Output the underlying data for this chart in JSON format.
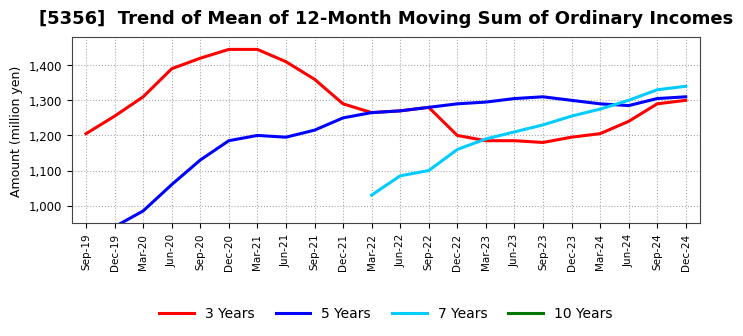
{
  "title": "[5356]  Trend of Mean of 12-Month Moving Sum of Ordinary Incomes",
  "ylabel": "Amount (million yen)",
  "ylim": [
    950,
    1480
  ],
  "yticks": [
    1000,
    1100,
    1200,
    1300,
    1400
  ],
  "x_labels": [
    "Sep-19",
    "Dec-19",
    "Mar-20",
    "Jun-20",
    "Sep-20",
    "Dec-20",
    "Mar-21",
    "Jun-21",
    "Sep-21",
    "Dec-21",
    "Mar-22",
    "Jun-22",
    "Sep-22",
    "Dec-22",
    "Mar-23",
    "Jun-23",
    "Sep-23",
    "Dec-23",
    "Mar-24",
    "Jun-24",
    "Sep-24",
    "Dec-24"
  ],
  "series_3yr": {
    "label": "3 Years",
    "color": "#ff0000",
    "x": [
      0,
      1,
      2,
      3,
      4,
      5,
      6,
      7,
      8,
      9,
      10,
      11,
      12,
      13,
      14,
      15,
      16,
      17,
      18,
      19,
      20,
      21
    ],
    "y": [
      1205,
      1255,
      1310,
      1390,
      1420,
      1445,
      1445,
      1410,
      1360,
      1290,
      1265,
      1270,
      1280,
      1200,
      1185,
      1185,
      1180,
      1195,
      1205,
      1240,
      1290,
      1300
    ]
  },
  "series_5yr": {
    "label": "5 Years",
    "color": "#0000ff",
    "x": [
      1,
      2,
      3,
      4,
      5,
      6,
      7,
      8,
      9,
      10,
      11,
      12,
      13,
      14,
      15,
      16,
      17,
      18,
      19,
      20,
      21
    ],
    "y": [
      940,
      985,
      1060,
      1130,
      1185,
      1200,
      1195,
      1215,
      1250,
      1265,
      1270,
      1280,
      1290,
      1295,
      1305,
      1310,
      1300,
      1290,
      1285,
      1305,
      1310
    ]
  },
  "series_7yr": {
    "label": "7 Years",
    "color": "#00ccff",
    "x": [
      10,
      11,
      12,
      13,
      14,
      15,
      16,
      17,
      18,
      19,
      20,
      21
    ],
    "y": [
      1030,
      1085,
      1100,
      1160,
      1190,
      1210,
      1230,
      1255,
      1275,
      1300,
      1330,
      1340
    ]
  },
  "series_10yr": {
    "label": "10 Years",
    "color": "#007700",
    "x": [],
    "y": []
  },
  "background_color": "#ffffff",
  "grid_color": "#aaaaaa",
  "title_fontsize": 13,
  "legend_fontsize": 10
}
